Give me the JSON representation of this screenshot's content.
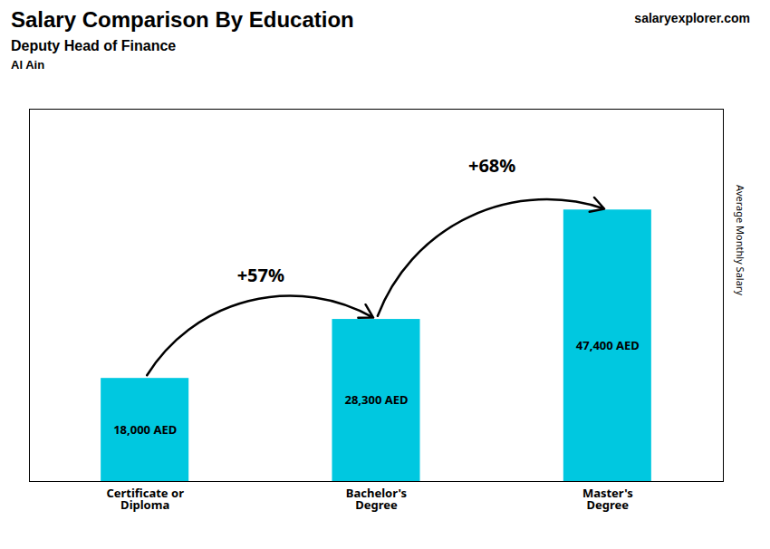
{
  "chart_data": {
    "type": "bar",
    "title": "Salary Comparison By Education",
    "subtitle": [
      "Deputy Head of Finance",
      "Al Ain"
    ],
    "watermark": "salaryexplorer.com",
    "ylabel": "Average Monthly Salary",
    "categories": [
      "Certificate or\nDiploma",
      "Bachelor's\nDegree",
      "Master's\nDegree"
    ],
    "values": [
      18000,
      28300,
      47400
    ],
    "value_labels": [
      "18,000 AED",
      "28,300 AED",
      "47,400 AED"
    ],
    "data_labels": true,
    "annotations": [
      "+57%",
      "+68%"
    ],
    "color": "#00c8e0",
    "ylim": [
      0,
      65000
    ],
    "yticks": [],
    "tick_labels": "x",
    "grid": false
  }
}
